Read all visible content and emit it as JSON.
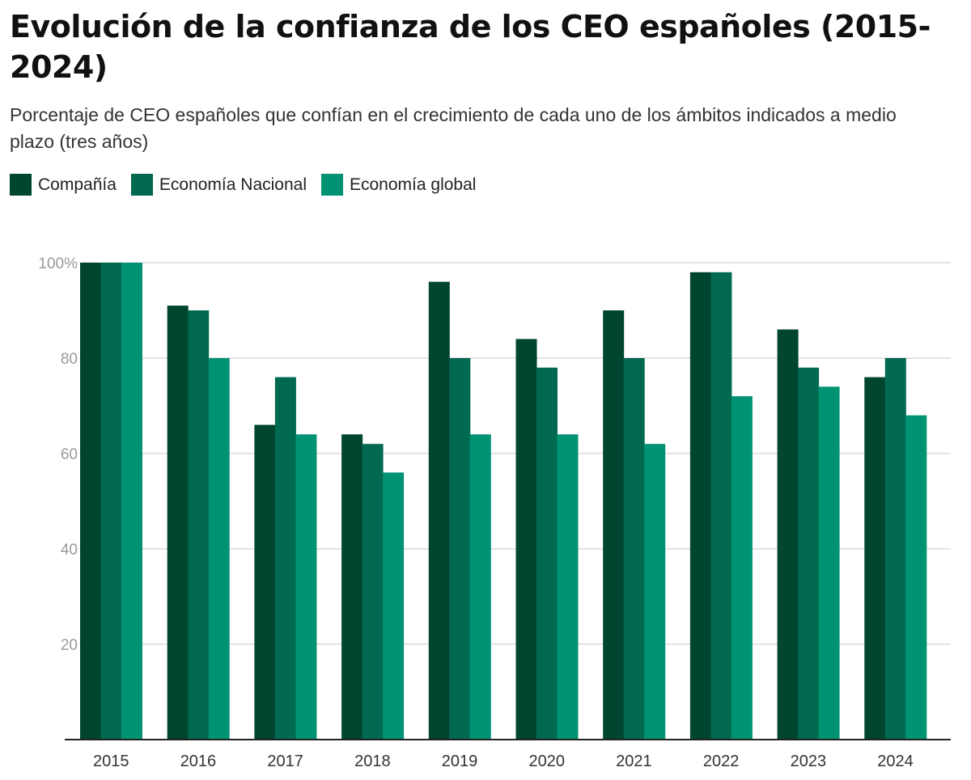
{
  "chart_data": {
    "type": "bar",
    "title": "Evolución de la confianza de los CEO españoles (2015-2024)",
    "subtitle": "Porcentaje de CEO españoles que confían en el crecimiento de cada uno de los ámbitos indicados a medio plazo (tres años)",
    "categories": [
      "2015",
      "2016",
      "2017",
      "2018",
      "2019",
      "2020",
      "2021",
      "2022",
      "2023",
      "2024"
    ],
    "series": [
      {
        "name": "Compañía",
        "color": "#00452f",
        "values": [
          100,
          91,
          66,
          64,
          96,
          84,
          90,
          98,
          86,
          76
        ]
      },
      {
        "name": "Economía Nacional",
        "color": "#006950",
        "values": [
          100,
          90,
          76,
          62,
          80,
          78,
          80,
          98,
          78,
          80
        ]
      },
      {
        "name": "Economía global",
        "color": "#009373",
        "values": [
          100,
          80,
          64,
          56,
          64,
          64,
          62,
          72,
          74,
          68
        ]
      }
    ],
    "ylim": [
      0,
      100
    ],
    "yticks": [
      {
        "value": 20,
        "label": "20"
      },
      {
        "value": 40,
        "label": "40"
      },
      {
        "value": 60,
        "label": "60"
      },
      {
        "value": 80,
        "label": "80"
      },
      {
        "value": 100,
        "label": "100%"
      }
    ],
    "grid": true,
    "legend": "top-left",
    "xlabel": "",
    "ylabel": ""
  }
}
